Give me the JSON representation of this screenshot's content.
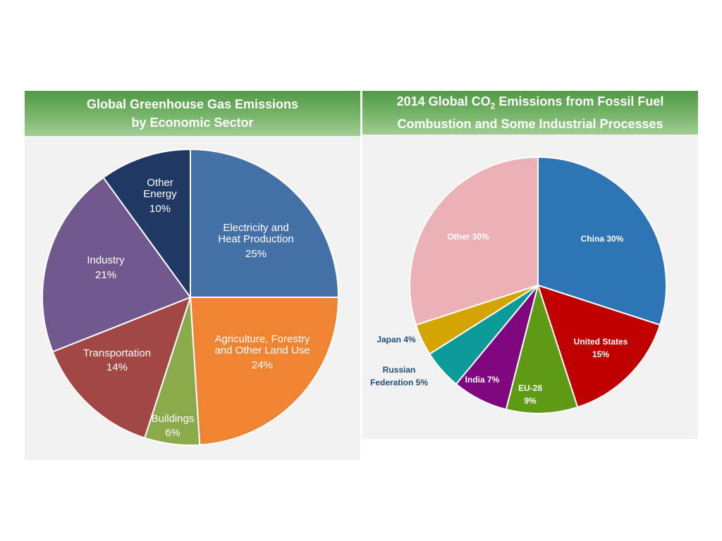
{
  "chart_data": [
    {
      "type": "pie",
      "title_line1": "Global Greenhouse Gas Emissions",
      "title_line2": "by Economic Sector",
      "slices": [
        {
          "label_lines": [
            "Electricity and",
            "Heat Production"
          ],
          "pct_text": "25%",
          "value": 25,
          "color": "#4470a8"
        },
        {
          "label_lines": [
            "Agriculture, Forestry",
            "and Other Land Use"
          ],
          "pct_text": "24%",
          "value": 24,
          "color": "#ef8433"
        },
        {
          "label_lines": [
            "Buildings"
          ],
          "pct_text": "6%",
          "value": 6,
          "color": "#8aaa4c"
        },
        {
          "label_lines": [
            "Transportation"
          ],
          "pct_text": "14%",
          "value": 14,
          "color": "#a34744"
        },
        {
          "label_lines": [
            "Industry"
          ],
          "pct_text": "21%",
          "value": 21,
          "color": "#715990"
        },
        {
          "label_lines": [
            "Other",
            "Energy"
          ],
          "pct_text": "10%",
          "value": 10,
          "color": "#1f3864"
        }
      ]
    },
    {
      "type": "pie",
      "title_pre": "2014 Global CO",
      "title_sub": "2",
      "title_post": " Emissions from Fossil Fuel",
      "title_line2": "Combustion and Some Industrial Processes",
      "slices": [
        {
          "label_lines": [
            "China 30%"
          ],
          "value": 30,
          "color": "#2e75b6"
        },
        {
          "label_lines": [
            "United States",
            "15%"
          ],
          "value": 15,
          "color": "#c00000"
        },
        {
          "label_lines": [
            "EU-28",
            "9%"
          ],
          "value": 9,
          "color": "#5f9a14"
        },
        {
          "label_lines": [
            "India 7%"
          ],
          "value": 7,
          "color": "#7f067f"
        },
        {
          "label_lines": [
            "Russian",
            "Federation 5%"
          ],
          "value": 5,
          "color": "#0d9a9a"
        },
        {
          "label_lines": [
            "Japan 4%"
          ],
          "value": 4,
          "color": "#d4a500"
        },
        {
          "label_lines": [
            "Other 30%"
          ],
          "value": 30,
          "color": "#ebb1b6"
        }
      ]
    }
  ]
}
